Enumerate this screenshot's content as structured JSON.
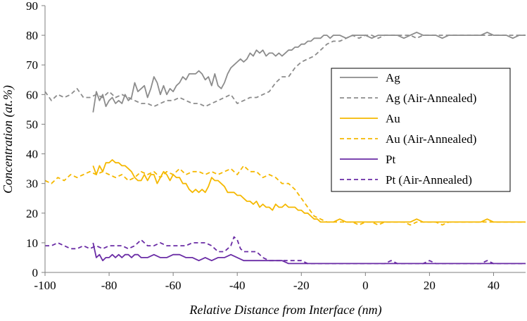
{
  "chart_data": {
    "type": "line",
    "title": "",
    "xlabel": "Relative Distance from Interface (nm)",
    "ylabel": "Concentration (at.%)",
    "xlim": [
      -100,
      50
    ],
    "ylim": [
      0,
      90
    ],
    "xticks": [
      -100,
      -80,
      -60,
      -40,
      -20,
      0,
      20,
      40
    ],
    "yticks": [
      0,
      10,
      20,
      30,
      40,
      50,
      60,
      70,
      80,
      90
    ],
    "grid": false,
    "legend_position": "right",
    "series": [
      {
        "name": "Ag",
        "color": "#8c8c8c",
        "dash": "solid",
        "x": [
          -85,
          -84,
          -83,
          -82,
          -81,
          -80,
          -79,
          -78,
          -77,
          -76,
          -75,
          -74,
          -73,
          -72,
          -71,
          -70,
          -69,
          -68,
          -67,
          -66,
          -65,
          -64,
          -63,
          -62,
          -61,
          -60,
          -59,
          -58,
          -57,
          -56,
          -55,
          -54,
          -53,
          -52,
          -51,
          -50,
          -49,
          -48,
          -47,
          -46,
          -45,
          -44,
          -43,
          -42,
          -41,
          -40,
          -39,
          -38,
          -37,
          -36,
          -35,
          -34,
          -33,
          -32,
          -31,
          -30,
          -29,
          -28,
          -27,
          -26,
          -25,
          -24,
          -23,
          -22,
          -21,
          -20,
          -19,
          -18,
          -17,
          -16,
          -15,
          -14,
          -13,
          -12,
          -11,
          -10,
          -8,
          -6,
          -4,
          -2,
          0,
          2,
          4,
          6,
          8,
          10,
          12,
          14,
          16,
          18,
          20,
          22,
          24,
          26,
          28,
          30,
          32,
          34,
          36,
          38,
          40,
          42,
          44,
          46,
          48,
          50
        ],
        "values": [
          54,
          61,
          58,
          60,
          56,
          58,
          59,
          57,
          58,
          57,
          60,
          58,
          59,
          64,
          61,
          62,
          63,
          59,
          62,
          66,
          64,
          60,
          63,
          60,
          62,
          61,
          63,
          64,
          66,
          65,
          67,
          67,
          67,
          68,
          67,
          65,
          66,
          63,
          67,
          63,
          62,
          64,
          67,
          69,
          70,
          71,
          72,
          71,
          72,
          74,
          73,
          75,
          74,
          75,
          73,
          74,
          74,
          73,
          74,
          73,
          74,
          75,
          75,
          76,
          76,
          77,
          77,
          78,
          78,
          79,
          79,
          79,
          80,
          80,
          79,
          80,
          80,
          79,
          80,
          80,
          80,
          79,
          80,
          80,
          80,
          80,
          79,
          80,
          81,
          80,
          80,
          80,
          79,
          80,
          80,
          80,
          80,
          80,
          80,
          81,
          80,
          80,
          80,
          79,
          80,
          80
        ]
      },
      {
        "name": "Ag (Air-Annealed)",
        "color": "#8c8c8c",
        "dash": "dashed",
        "x": [
          -100,
          -98,
          -96,
          -94,
          -92,
          -90,
          -88,
          -86,
          -84,
          -82,
          -80,
          -78,
          -76,
          -74,
          -72,
          -70,
          -68,
          -66,
          -64,
          -62,
          -60,
          -58,
          -56,
          -54,
          -52,
          -50,
          -48,
          -46,
          -44,
          -42,
          -40,
          -38,
          -36,
          -34,
          -32,
          -30,
          -28,
          -26,
          -24,
          -22,
          -20,
          -18,
          -16,
          -14,
          -12,
          -10,
          -8,
          -6,
          -4,
          -2,
          0,
          2,
          4,
          6,
          8,
          10,
          12,
          14,
          16,
          18,
          20,
          22,
          24,
          26,
          28,
          30,
          32,
          34,
          36,
          38,
          40,
          42,
          44,
          46,
          48,
          50
        ],
        "values": [
          61,
          58,
          60,
          59,
          60,
          62,
          59,
          59,
          60,
          59,
          61,
          59,
          60,
          59,
          58,
          57,
          57,
          56,
          57,
          58,
          58,
          59,
          58,
          57,
          57,
          56,
          57,
          58,
          59,
          60,
          57,
          58,
          59,
          59,
          60,
          61,
          64,
          66,
          66,
          69,
          71,
          72,
          73,
          75,
          77,
          78,
          78,
          79,
          80,
          79,
          80,
          80,
          79,
          80,
          80,
          80,
          80,
          80,
          79,
          80,
          80,
          80,
          80,
          80,
          80,
          80,
          80,
          80,
          80,
          80,
          80,
          80,
          80,
          80,
          80,
          80
        ]
      },
      {
        "name": "Au",
        "color": "#f5b800",
        "dash": "solid",
        "x": [
          -85,
          -84,
          -83,
          -82,
          -81,
          -80,
          -79,
          -78,
          -77,
          -76,
          -75,
          -74,
          -73,
          -72,
          -71,
          -70,
          -69,
          -68,
          -67,
          -66,
          -65,
          -64,
          -63,
          -62,
          -61,
          -60,
          -59,
          -58,
          -57,
          -56,
          -55,
          -54,
          -53,
          -52,
          -51,
          -50,
          -49,
          -48,
          -47,
          -46,
          -45,
          -44,
          -43,
          -42,
          -41,
          -40,
          -39,
          -38,
          -37,
          -36,
          -35,
          -34,
          -33,
          -32,
          -31,
          -30,
          -29,
          -28,
          -27,
          -26,
          -25,
          -24,
          -23,
          -22,
          -21,
          -20,
          -19,
          -18,
          -17,
          -16,
          -15,
          -14,
          -12,
          -10,
          -8,
          -6,
          -4,
          -2,
          0,
          2,
          4,
          6,
          8,
          10,
          12,
          14,
          16,
          18,
          20,
          22,
          24,
          26,
          28,
          30,
          32,
          34,
          36,
          38,
          40,
          42,
          44,
          46,
          48,
          50
        ],
        "values": [
          36,
          33,
          36,
          34,
          37,
          37,
          38,
          37,
          37,
          36,
          36,
          35,
          34,
          32,
          31,
          31,
          33,
          31,
          33,
          33,
          30,
          32,
          34,
          33,
          31,
          33,
          32,
          32,
          30,
          30,
          28,
          27,
          28,
          27,
          28,
          27,
          29,
          32,
          31,
          31,
          30,
          29,
          27,
          27,
          27,
          26,
          26,
          25,
          24,
          24,
          23,
          24,
          22,
          23,
          22,
          22,
          21,
          23,
          22,
          22,
          23,
          22,
          22,
          22,
          21,
          21,
          20,
          20,
          19,
          18,
          18,
          17,
          17,
          17,
          18,
          17,
          17,
          17,
          17,
          17,
          17,
          17,
          17,
          17,
          17,
          17,
          18,
          17,
          17,
          17,
          17,
          17,
          17,
          17,
          17,
          17,
          17,
          18,
          17,
          17,
          17,
          17,
          17,
          17
        ]
      },
      {
        "name": "Au (Air-Annealed)",
        "color": "#f5b800",
        "dash": "dashed",
        "x": [
          -100,
          -98,
          -96,
          -94,
          -92,
          -90,
          -88,
          -86,
          -84,
          -82,
          -80,
          -78,
          -76,
          -74,
          -72,
          -70,
          -68,
          -66,
          -64,
          -62,
          -60,
          -58,
          -56,
          -54,
          -52,
          -50,
          -48,
          -46,
          -44,
          -42,
          -40,
          -38,
          -36,
          -34,
          -32,
          -30,
          -28,
          -26,
          -24,
          -22,
          -20,
          -18,
          -16,
          -14,
          -12,
          -10,
          -8,
          -6,
          -4,
          -2,
          0,
          2,
          4,
          6,
          8,
          10,
          12,
          14,
          16,
          18,
          20,
          22,
          24,
          26,
          28,
          30,
          32,
          34,
          36,
          38,
          40,
          42,
          44,
          46,
          48,
          50
        ],
        "values": [
          31,
          30,
          32,
          31,
          33,
          32,
          33,
          34,
          33,
          34,
          33,
          32,
          33,
          31,
          32,
          34,
          33,
          34,
          32,
          34,
          33,
          35,
          33,
          34,
          34,
          33,
          34,
          33,
          34,
          35,
          33,
          36,
          34,
          34,
          32,
          33,
          32,
          30,
          30,
          28,
          25,
          22,
          19,
          18,
          17,
          17,
          17,
          17,
          17,
          16,
          17,
          17,
          16,
          17,
          17,
          17,
          17,
          16,
          17,
          17,
          17,
          17,
          16,
          17,
          17,
          17,
          17,
          17,
          17,
          17,
          17,
          17,
          17,
          17,
          17,
          17
        ]
      },
      {
        "name": "Pt",
        "color": "#6a2ca5",
        "dash": "solid",
        "x": [
          -85,
          -84,
          -83,
          -82,
          -81,
          -80,
          -79,
          -78,
          -77,
          -76,
          -75,
          -74,
          -73,
          -72,
          -71,
          -70,
          -68,
          -66,
          -64,
          -62,
          -60,
          -58,
          -56,
          -54,
          -52,
          -50,
          -48,
          -46,
          -44,
          -42,
          -40,
          -38,
          -36,
          -34,
          -32,
          -30,
          -28,
          -26,
          -24,
          -22,
          -20,
          -18,
          -16,
          -14,
          -12,
          -10,
          -8,
          -6,
          -4,
          -2,
          0,
          2,
          4,
          6,
          8,
          10,
          12,
          14,
          16,
          18,
          20,
          22,
          24,
          26,
          28,
          30,
          32,
          34,
          36,
          38,
          40,
          42,
          44,
          46,
          48,
          50
        ],
        "values": [
          10,
          5,
          6,
          4,
          5,
          5,
          6,
          5,
          6,
          5,
          6,
          6,
          5,
          6,
          6,
          5,
          5,
          6,
          5,
          5,
          6,
          6,
          5,
          5,
          4,
          5,
          4,
          5,
          5,
          6,
          5,
          4,
          4,
          4,
          4,
          4,
          4,
          4,
          3,
          3,
          3,
          3,
          3,
          3,
          3,
          3,
          3,
          3,
          3,
          3,
          3,
          3,
          3,
          3,
          3,
          3,
          3,
          3,
          3,
          3,
          3,
          3,
          3,
          3,
          3,
          3,
          3,
          3,
          3,
          3,
          3,
          3,
          3,
          3,
          3,
          3
        ]
      },
      {
        "name": "Pt (Air-Annealed)",
        "color": "#6a2ca5",
        "dash": "dashed",
        "x": [
          -100,
          -98,
          -96,
          -94,
          -92,
          -90,
          -88,
          -86,
          -84,
          -82,
          -80,
          -78,
          -76,
          -74,
          -72,
          -70,
          -68,
          -66,
          -64,
          -62,
          -60,
          -58,
          -56,
          -54,
          -52,
          -50,
          -48,
          -46,
          -44,
          -42,
          -41,
          -40,
          -39,
          -38,
          -36,
          -34,
          -32,
          -30,
          -28,
          -26,
          -24,
          -22,
          -20,
          -18,
          -16,
          -14,
          -12,
          -10,
          -8,
          -6,
          -4,
          -2,
          0,
          2,
          4,
          6,
          8,
          10,
          12,
          14,
          16,
          18,
          20,
          22,
          24,
          26,
          28,
          30,
          32,
          34,
          36,
          38,
          40,
          42,
          44,
          46,
          48,
          50
        ],
        "values": [
          9,
          9,
          10,
          9,
          8,
          8,
          9,
          8,
          9,
          8,
          9,
          9,
          9,
          8,
          9,
          11,
          9,
          9,
          10,
          9,
          9,
          9,
          9,
          10,
          10,
          10,
          9,
          7,
          7,
          9,
          12,
          11,
          8,
          7,
          7,
          7,
          5,
          4,
          4,
          4,
          4,
          4,
          4,
          3,
          3,
          3,
          3,
          3,
          3,
          3,
          3,
          3,
          3,
          3,
          3,
          3,
          4,
          3,
          3,
          3,
          3,
          3,
          4,
          3,
          3,
          3,
          3,
          3,
          3,
          3,
          3,
          4,
          3,
          3,
          3,
          3,
          3,
          3
        ]
      }
    ]
  }
}
